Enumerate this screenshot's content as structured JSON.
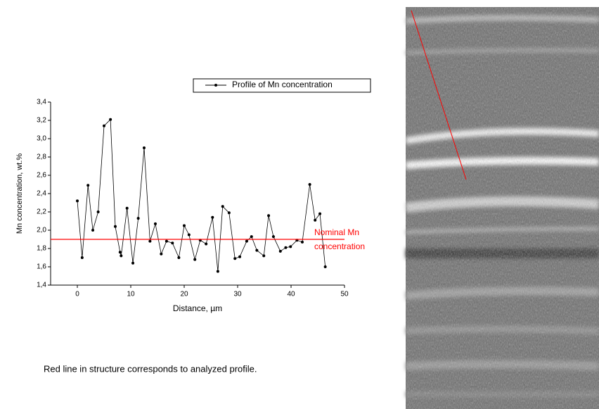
{
  "chart_data": {
    "type": "line",
    "x_label": "Distance, µm",
    "y_label": "Mn concentration, wt.%",
    "x": [
      0,
      0.9,
      2,
      2.9,
      3.9,
      5,
      6.2,
      7.1,
      8.0,
      8.2,
      9.3,
      10.4,
      11.4,
      12.5,
      13.6,
      14.6,
      15.7,
      16.7,
      17.8,
      19.0,
      20.0,
      20.9,
      22.0,
      23.0,
      24.1,
      25.3,
      26.3,
      27.2,
      28.4,
      29.5,
      30.4,
      31.7,
      32.6,
      33.6,
      34.9,
      35.8,
      36.7,
      38.0,
      39.0,
      39.9,
      41.1,
      42.1,
      43.5,
      44.5,
      45.4,
      46.4
    ],
    "series": [
      {
        "name": "Profile of Mn concentration",
        "color": "#000000",
        "values": [
          2.32,
          1.7,
          2.49,
          2.0,
          2.2,
          3.14,
          3.21,
          2.04,
          1.76,
          1.72,
          2.24,
          1.64,
          2.13,
          2.9,
          1.88,
          2.07,
          1.74,
          1.88,
          1.86,
          1.7,
          2.05,
          1.95,
          1.68,
          1.89,
          1.85,
          2.14,
          1.55,
          2.26,
          2.19,
          1.69,
          1.71,
          1.88,
          1.93,
          1.78,
          1.72,
          2.16,
          1.93,
          1.77,
          1.81,
          1.82,
          1.89,
          1.87,
          2.5,
          2.11,
          2.18,
          1.6
        ]
      }
    ],
    "reference_line": {
      "y": 1.9,
      "color": "#ff0000",
      "label": [
        "Nominal Mn",
        "concentration"
      ]
    },
    "xlim": [
      -5,
      50
    ],
    "xticks": [
      0,
      10,
      20,
      30,
      40,
      50
    ],
    "ylim": [
      1.4,
      3.4
    ],
    "yticks": [
      {
        "value": 1.4,
        "label": "1,4"
      },
      {
        "value": 1.6,
        "label": "1,6"
      },
      {
        "value": 1.8,
        "label": "1,8"
      },
      {
        "value": 2.0,
        "label": "2,0"
      },
      {
        "value": 2.2,
        "label": "2,2"
      },
      {
        "value": 2.4,
        "label": "2,4"
      },
      {
        "value": 2.6,
        "label": "2,6"
      },
      {
        "value": 2.8,
        "label": "2,8"
      },
      {
        "value": 3.0,
        "label": "3,0"
      },
      {
        "value": 3.2,
        "label": "3,2"
      },
      {
        "value": 3.4,
        "label": "3,4"
      }
    ],
    "caption": "Red line in structure corresponds to analyzed profile."
  }
}
